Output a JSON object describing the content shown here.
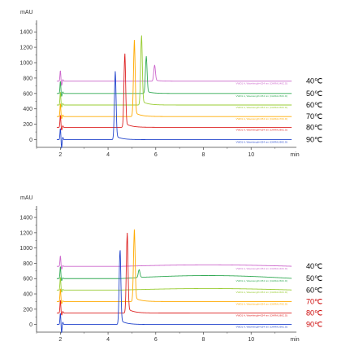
{
  "chart_data": [
    {
      "type": "line",
      "panel": "top",
      "ylabel": "mAU",
      "xlabel": "min",
      "xlim": [
        1,
        11.9
      ],
      "ylim": [
        -100,
        1550
      ],
      "yticks": [
        0,
        200,
        400,
        600,
        800,
        1000,
        1200,
        1400
      ],
      "xticks": [
        2,
        4,
        6,
        8,
        10
      ],
      "grid": false,
      "legend": "right, beside each trace",
      "series": [
        {
          "name": "40℃",
          "color": "#cc66cc",
          "label_color": "#000000",
          "tag": "VWD1 A, Wavelength=254 nm (CHIRAL\\40C.D)",
          "baseline": 760,
          "solvent_front": [
            [
              2.0,
              900
            ],
            [
              2.05,
              700
            ],
            [
              2.1,
              780
            ]
          ],
          "peaks": [
            [
              5.95,
              960
            ]
          ],
          "drift": 0
        },
        {
          "name": "50℃",
          "color": "#33aa55",
          "label_color": "#000000",
          "tag": "VWD1 A, Wavelength=254 nm (CHIRAL\\50C.D)",
          "baseline": 600,
          "solvent_front": [
            [
              2.0,
              760
            ],
            [
              2.05,
              560
            ],
            [
              2.1,
              620
            ]
          ],
          "peaks": [
            [
              5.6,
              1060
            ]
          ],
          "drift": 0
        },
        {
          "name": "60℃",
          "color": "#99cc33",
          "label_color": "#000000",
          "tag": "VWD1 A, Wavelength=254 nm (CHIRAL\\60C.D)",
          "baseline": 450,
          "solvent_front": [
            [
              2.0,
              620
            ],
            [
              2.05,
              420
            ],
            [
              2.1,
              470
            ]
          ],
          "peaks": [
            [
              5.4,
              1320
            ]
          ],
          "drift": 0
        },
        {
          "name": "70℃",
          "color": "#ffaa00",
          "label_color": "#000000",
          "tag": "VWD1 A, Wavelength=254 nm (CHIRAL\\70C.D)",
          "baseline": 300,
          "solvent_front": [
            [
              2.0,
              470
            ],
            [
              2.05,
              270
            ],
            [
              2.1,
              320
            ]
          ],
          "peaks": [
            [
              5.1,
              1240
            ]
          ],
          "drift": 0
        },
        {
          "name": "80℃",
          "color": "#dd2222",
          "label_color": "#000000",
          "tag": "VWD1 A, Wavelength=254 nm (CHIRAL\\80C.D)",
          "baseline": 160,
          "solvent_front": [
            [
              2.0,
              320
            ],
            [
              2.05,
              120
            ],
            [
              2.1,
              180
            ]
          ],
          "peaks": [
            [
              4.7,
              1080
            ]
          ],
          "drift": 0
        },
        {
          "name": "90℃",
          "color": "#2244cc",
          "label_color": "#000000",
          "tag": "VWD1 A, Wavelength=254 nm (CHIRAL\\90C.D)",
          "baseline": 0,
          "solvent_front": [
            [
              2.0,
              150
            ],
            [
              2.05,
              -110
            ],
            [
              2.1,
              30
            ]
          ],
          "peaks": [
            [
              4.3,
              840
            ]
          ],
          "drift": 0
        }
      ]
    },
    {
      "type": "line",
      "panel": "bottom",
      "ylabel": "mAU",
      "xlabel": "min",
      "xlim": [
        1,
        11.9
      ],
      "ylim": [
        -100,
        1550
      ],
      "yticks": [
        0,
        200,
        400,
        600,
        800,
        1000,
        1200,
        1400
      ],
      "xticks": [
        2,
        4,
        6,
        8,
        10
      ],
      "grid": false,
      "legend": "right, beside each trace",
      "series": [
        {
          "name": "40℃",
          "color": "#cc66cc",
          "label_color": "#000000",
          "tag": "VWD1 A, Wavelength=254 nm (CHIRAL\\40C.D)",
          "baseline": 760,
          "solvent_front": [
            [
              2.0,
              900
            ],
            [
              2.05,
              720
            ],
            [
              2.1,
              770
            ]
          ],
          "peaks": [],
          "drift": 20
        },
        {
          "name": "50℃",
          "color": "#33aa55",
          "label_color": "#000000",
          "tag": "VWD1 A, Wavelength=254 nm (CHIRAL\\50C.D)",
          "baseline": 600,
          "solvent_front": [
            [
              2.0,
              760
            ],
            [
              2.05,
              570
            ],
            [
              2.1,
              610
            ]
          ],
          "peaks": [
            [
              5.3,
              700
            ]
          ],
          "drift": 40
        },
        {
          "name": "60℃",
          "color": "#99cc33",
          "label_color": "#000000",
          "tag": "VWD1 A, Wavelength=254 nm (CHIRAL\\60C.D)",
          "baseline": 450,
          "solvent_front": [
            [
              2.0,
              620
            ],
            [
              2.05,
              420
            ],
            [
              2.1,
              460
            ]
          ],
          "peaks": [],
          "drift": 20
        },
        {
          "name": "70℃",
          "color": "#ffaa00",
          "label_color": "#cc0000",
          "tag": "VWD1 A, Wavelength=254 nm (CHIRAL\\70C.D)",
          "baseline": 300,
          "solvent_front": [
            [
              2.0,
              470
            ],
            [
              2.05,
              270
            ],
            [
              2.1,
              310
            ]
          ],
          "peaks": [
            [
              5.1,
              1190
            ]
          ],
          "drift": 0
        },
        {
          "name": "80℃",
          "color": "#dd2222",
          "label_color": "#cc0000",
          "tag": "VWD1 A, Wavelength=254 nm (CHIRAL\\80C.D)",
          "baseline": 150,
          "solvent_front": [
            [
              2.0,
              320
            ],
            [
              2.05,
              120
            ],
            [
              2.1,
              170
            ]
          ],
          "peaks": [
            [
              4.8,
              1150
            ]
          ],
          "drift": 0
        },
        {
          "name": "90℃",
          "color": "#2244cc",
          "label_color": "#cc0000",
          "tag": "VWD1 A, Wavelength=254 nm (CHIRAL\\90C.D)",
          "baseline": 0,
          "solvent_front": [
            [
              2.0,
              150
            ],
            [
              2.05,
              -110
            ],
            [
              2.1,
              30
            ]
          ],
          "peaks": [
            [
              4.5,
              950
            ]
          ],
          "drift": 0
        }
      ]
    }
  ]
}
